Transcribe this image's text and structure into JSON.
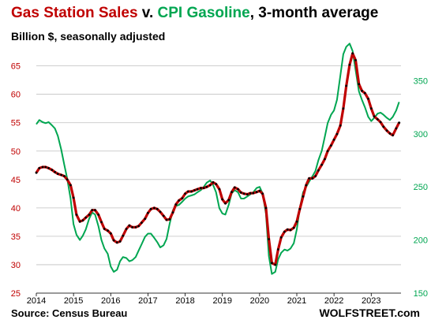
{
  "chart_data": {
    "type": "line",
    "title_parts": [
      "Gas Station Sales",
      " v. ",
      "CPI Gasoline",
      ", 3-month average"
    ],
    "subtitle": "Billion $, seasonally adjusted",
    "source": "Source: Census Bureau",
    "brand": "WOLFSTREET.com",
    "colors": {
      "sales": "#c00000",
      "sales_dots": "#000000",
      "cpi": "#00a651",
      "title_black": "#000000"
    },
    "x_ticks": [
      "2014",
      "2015",
      "2016",
      "2017",
      "2018",
      "2019",
      "2020",
      "2021",
      "2022",
      "2023"
    ],
    "y_left": {
      "ticks": [
        "25",
        "30",
        "35",
        "40",
        "45",
        "50",
        "55",
        "60",
        "65"
      ],
      "range": [
        25,
        68
      ]
    },
    "y_right": {
      "ticks": [
        "150",
        "200",
        "250",
        "300",
        "350"
      ],
      "range": [
        150,
        380
      ]
    },
    "grid": "horizontal",
    "series": [
      {
        "name": "Gas Station Sales",
        "axis": "left",
        "points": [
          [
            2014.0,
            46.2
          ],
          [
            2014.08,
            47.0
          ],
          [
            2014.17,
            47.2
          ],
          [
            2014.25,
            47.2
          ],
          [
            2014.33,
            47.0
          ],
          [
            2014.42,
            46.7
          ],
          [
            2014.5,
            46.3
          ],
          [
            2014.58,
            46.0
          ],
          [
            2014.67,
            45.8
          ],
          [
            2014.75,
            45.6
          ],
          [
            2014.83,
            45.0
          ],
          [
            2014.92,
            44.0
          ],
          [
            2015.0,
            41.8
          ],
          [
            2015.08,
            38.8
          ],
          [
            2015.17,
            37.6
          ],
          [
            2015.25,
            37.8
          ],
          [
            2015.33,
            38.3
          ],
          [
            2015.42,
            38.8
          ],
          [
            2015.5,
            39.6
          ],
          [
            2015.58,
            39.6
          ],
          [
            2015.67,
            38.8
          ],
          [
            2015.75,
            37.5
          ],
          [
            2015.83,
            36.3
          ],
          [
            2015.92,
            36.0
          ],
          [
            2016.0,
            35.5
          ],
          [
            2016.08,
            34.3
          ],
          [
            2016.17,
            33.9
          ],
          [
            2016.25,
            34.1
          ],
          [
            2016.33,
            35.1
          ],
          [
            2016.42,
            36.3
          ],
          [
            2016.5,
            36.9
          ],
          [
            2016.58,
            36.6
          ],
          [
            2016.67,
            36.6
          ],
          [
            2016.75,
            36.8
          ],
          [
            2016.83,
            37.4
          ],
          [
            2016.92,
            38.1
          ],
          [
            2017.0,
            39.1
          ],
          [
            2017.08,
            39.8
          ],
          [
            2017.17,
            40.0
          ],
          [
            2017.25,
            39.8
          ],
          [
            2017.33,
            39.3
          ],
          [
            2017.42,
            38.6
          ],
          [
            2017.5,
            37.9
          ],
          [
            2017.58,
            38.0
          ],
          [
            2017.67,
            39.2
          ],
          [
            2017.75,
            40.6
          ],
          [
            2017.83,
            41.3
          ],
          [
            2017.92,
            41.7
          ],
          [
            2018.0,
            42.5
          ],
          [
            2018.08,
            42.9
          ],
          [
            2018.17,
            42.9
          ],
          [
            2018.25,
            43.1
          ],
          [
            2018.33,
            43.3
          ],
          [
            2018.42,
            43.5
          ],
          [
            2018.5,
            43.5
          ],
          [
            2018.58,
            43.7
          ],
          [
            2018.67,
            44.0
          ],
          [
            2018.75,
            44.5
          ],
          [
            2018.83,
            44.2
          ],
          [
            2018.92,
            43.3
          ],
          [
            2019.0,
            41.5
          ],
          [
            2019.08,
            40.8
          ],
          [
            2019.17,
            41.4
          ],
          [
            2019.25,
            42.8
          ],
          [
            2019.33,
            43.6
          ],
          [
            2019.42,
            43.3
          ],
          [
            2019.5,
            42.7
          ],
          [
            2019.58,
            42.5
          ],
          [
            2019.67,
            42.4
          ],
          [
            2019.75,
            42.6
          ],
          [
            2019.83,
            42.6
          ],
          [
            2019.92,
            42.8
          ],
          [
            2020.0,
            43.0
          ],
          [
            2020.08,
            42.5
          ],
          [
            2020.17,
            40.0
          ],
          [
            2020.25,
            34.5
          ],
          [
            2020.33,
            30.3
          ],
          [
            2020.42,
            30.0
          ],
          [
            2020.5,
            32.7
          ],
          [
            2020.58,
            34.8
          ],
          [
            2020.67,
            35.8
          ],
          [
            2020.75,
            36.2
          ],
          [
            2020.83,
            36.1
          ],
          [
            2020.92,
            36.5
          ],
          [
            2021.0,
            37.6
          ],
          [
            2021.08,
            39.8
          ],
          [
            2021.17,
            42.0
          ],
          [
            2021.25,
            44.0
          ],
          [
            2021.33,
            45.2
          ],
          [
            2021.42,
            45.2
          ],
          [
            2021.5,
            45.6
          ],
          [
            2021.58,
            46.6
          ],
          [
            2021.67,
            47.6
          ],
          [
            2021.75,
            48.6
          ],
          [
            2021.83,
            50.0
          ],
          [
            2021.92,
            51.0
          ],
          [
            2022.0,
            52.0
          ],
          [
            2022.08,
            53.0
          ],
          [
            2022.17,
            54.5
          ],
          [
            2022.25,
            57.5
          ],
          [
            2022.33,
            61.5
          ],
          [
            2022.42,
            65.2
          ],
          [
            2022.5,
            67.2
          ],
          [
            2022.58,
            66.0
          ],
          [
            2022.67,
            61.8
          ],
          [
            2022.75,
            60.6
          ],
          [
            2022.83,
            60.2
          ],
          [
            2022.92,
            59.2
          ],
          [
            2023.0,
            57.5
          ],
          [
            2023.08,
            56.1
          ],
          [
            2023.17,
            55.6
          ],
          [
            2023.25,
            55.1
          ],
          [
            2023.33,
            54.3
          ],
          [
            2023.42,
            53.6
          ],
          [
            2023.5,
            53.1
          ],
          [
            2023.58,
            52.8
          ],
          [
            2023.67,
            54.0
          ],
          [
            2023.75,
            55.0
          ]
        ]
      },
      {
        "name": "CPI Gasoline",
        "axis": "right",
        "points": [
          [
            2014.0,
            309
          ],
          [
            2014.08,
            313
          ],
          [
            2014.17,
            311
          ],
          [
            2014.25,
            310
          ],
          [
            2014.33,
            311
          ],
          [
            2014.42,
            308
          ],
          [
            2014.5,
            305
          ],
          [
            2014.58,
            298
          ],
          [
            2014.67,
            285
          ],
          [
            2014.75,
            271
          ],
          [
            2014.83,
            258
          ],
          [
            2014.92,
            239
          ],
          [
            2015.0,
            215
          ],
          [
            2015.08,
            205
          ],
          [
            2015.17,
            200
          ],
          [
            2015.25,
            204
          ],
          [
            2015.33,
            210
          ],
          [
            2015.42,
            220
          ],
          [
            2015.5,
            226
          ],
          [
            2015.58,
            224
          ],
          [
            2015.67,
            213
          ],
          [
            2015.75,
            200
          ],
          [
            2015.83,
            192
          ],
          [
            2015.92,
            187
          ],
          [
            2016.0,
            175
          ],
          [
            2016.08,
            170
          ],
          [
            2016.17,
            172
          ],
          [
            2016.25,
            180
          ],
          [
            2016.33,
            184
          ],
          [
            2016.42,
            183
          ],
          [
            2016.5,
            180
          ],
          [
            2016.58,
            181
          ],
          [
            2016.67,
            184
          ],
          [
            2016.75,
            190
          ],
          [
            2016.83,
            196
          ],
          [
            2016.92,
            203
          ],
          [
            2017.0,
            206
          ],
          [
            2017.08,
            206
          ],
          [
            2017.17,
            202
          ],
          [
            2017.25,
            198
          ],
          [
            2017.33,
            193
          ],
          [
            2017.42,
            195
          ],
          [
            2017.5,
            201
          ],
          [
            2017.58,
            215
          ],
          [
            2017.67,
            228
          ],
          [
            2017.75,
            232
          ],
          [
            2017.83,
            233
          ],
          [
            2017.92,
            236
          ],
          [
            2018.0,
            239
          ],
          [
            2018.08,
            241
          ],
          [
            2018.17,
            242
          ],
          [
            2018.25,
            243
          ],
          [
            2018.33,
            245
          ],
          [
            2018.42,
            247
          ],
          [
            2018.5,
            250
          ],
          [
            2018.58,
            254
          ],
          [
            2018.67,
            256
          ],
          [
            2018.75,
            252
          ],
          [
            2018.83,
            245
          ],
          [
            2018.92,
            230
          ],
          [
            2019.0,
            225
          ],
          [
            2019.08,
            224
          ],
          [
            2019.17,
            233
          ],
          [
            2019.25,
            244
          ],
          [
            2019.33,
            247
          ],
          [
            2019.42,
            245
          ],
          [
            2019.5,
            239
          ],
          [
            2019.58,
            239
          ],
          [
            2019.67,
            241
          ],
          [
            2019.75,
            243
          ],
          [
            2019.83,
            245
          ],
          [
            2019.92,
            249
          ],
          [
            2020.0,
            250
          ],
          [
            2020.08,
            244
          ],
          [
            2020.17,
            225
          ],
          [
            2020.25,
            185
          ],
          [
            2020.33,
            168
          ],
          [
            2020.42,
            170
          ],
          [
            2020.5,
            182
          ],
          [
            2020.58,
            188
          ],
          [
            2020.67,
            191
          ],
          [
            2020.75,
            190
          ],
          [
            2020.83,
            192
          ],
          [
            2020.92,
            197
          ],
          [
            2021.0,
            210
          ],
          [
            2021.08,
            230
          ],
          [
            2021.17,
            245
          ],
          [
            2021.25,
            250
          ],
          [
            2021.33,
            255
          ],
          [
            2021.42,
            260
          ],
          [
            2021.5,
            265
          ],
          [
            2021.58,
            275
          ],
          [
            2021.67,
            284
          ],
          [
            2021.75,
            297
          ],
          [
            2021.83,
            310
          ],
          [
            2021.92,
            318
          ],
          [
            2022.0,
            322
          ],
          [
            2022.08,
            332
          ],
          [
            2022.17,
            355
          ],
          [
            2022.25,
            375
          ],
          [
            2022.33,
            382
          ],
          [
            2022.42,
            385
          ],
          [
            2022.5,
            378
          ],
          [
            2022.58,
            360
          ],
          [
            2022.67,
            340
          ],
          [
            2022.75,
            332
          ],
          [
            2022.83,
            325
          ],
          [
            2022.92,
            316
          ],
          [
            2023.0,
            312
          ],
          [
            2023.08,
            315
          ],
          [
            2023.17,
            319
          ],
          [
            2023.25,
            320
          ],
          [
            2023.33,
            318
          ],
          [
            2023.42,
            315
          ],
          [
            2023.5,
            313
          ],
          [
            2023.58,
            316
          ],
          [
            2023.67,
            322
          ],
          [
            2023.75,
            330
          ]
        ]
      }
    ]
  }
}
